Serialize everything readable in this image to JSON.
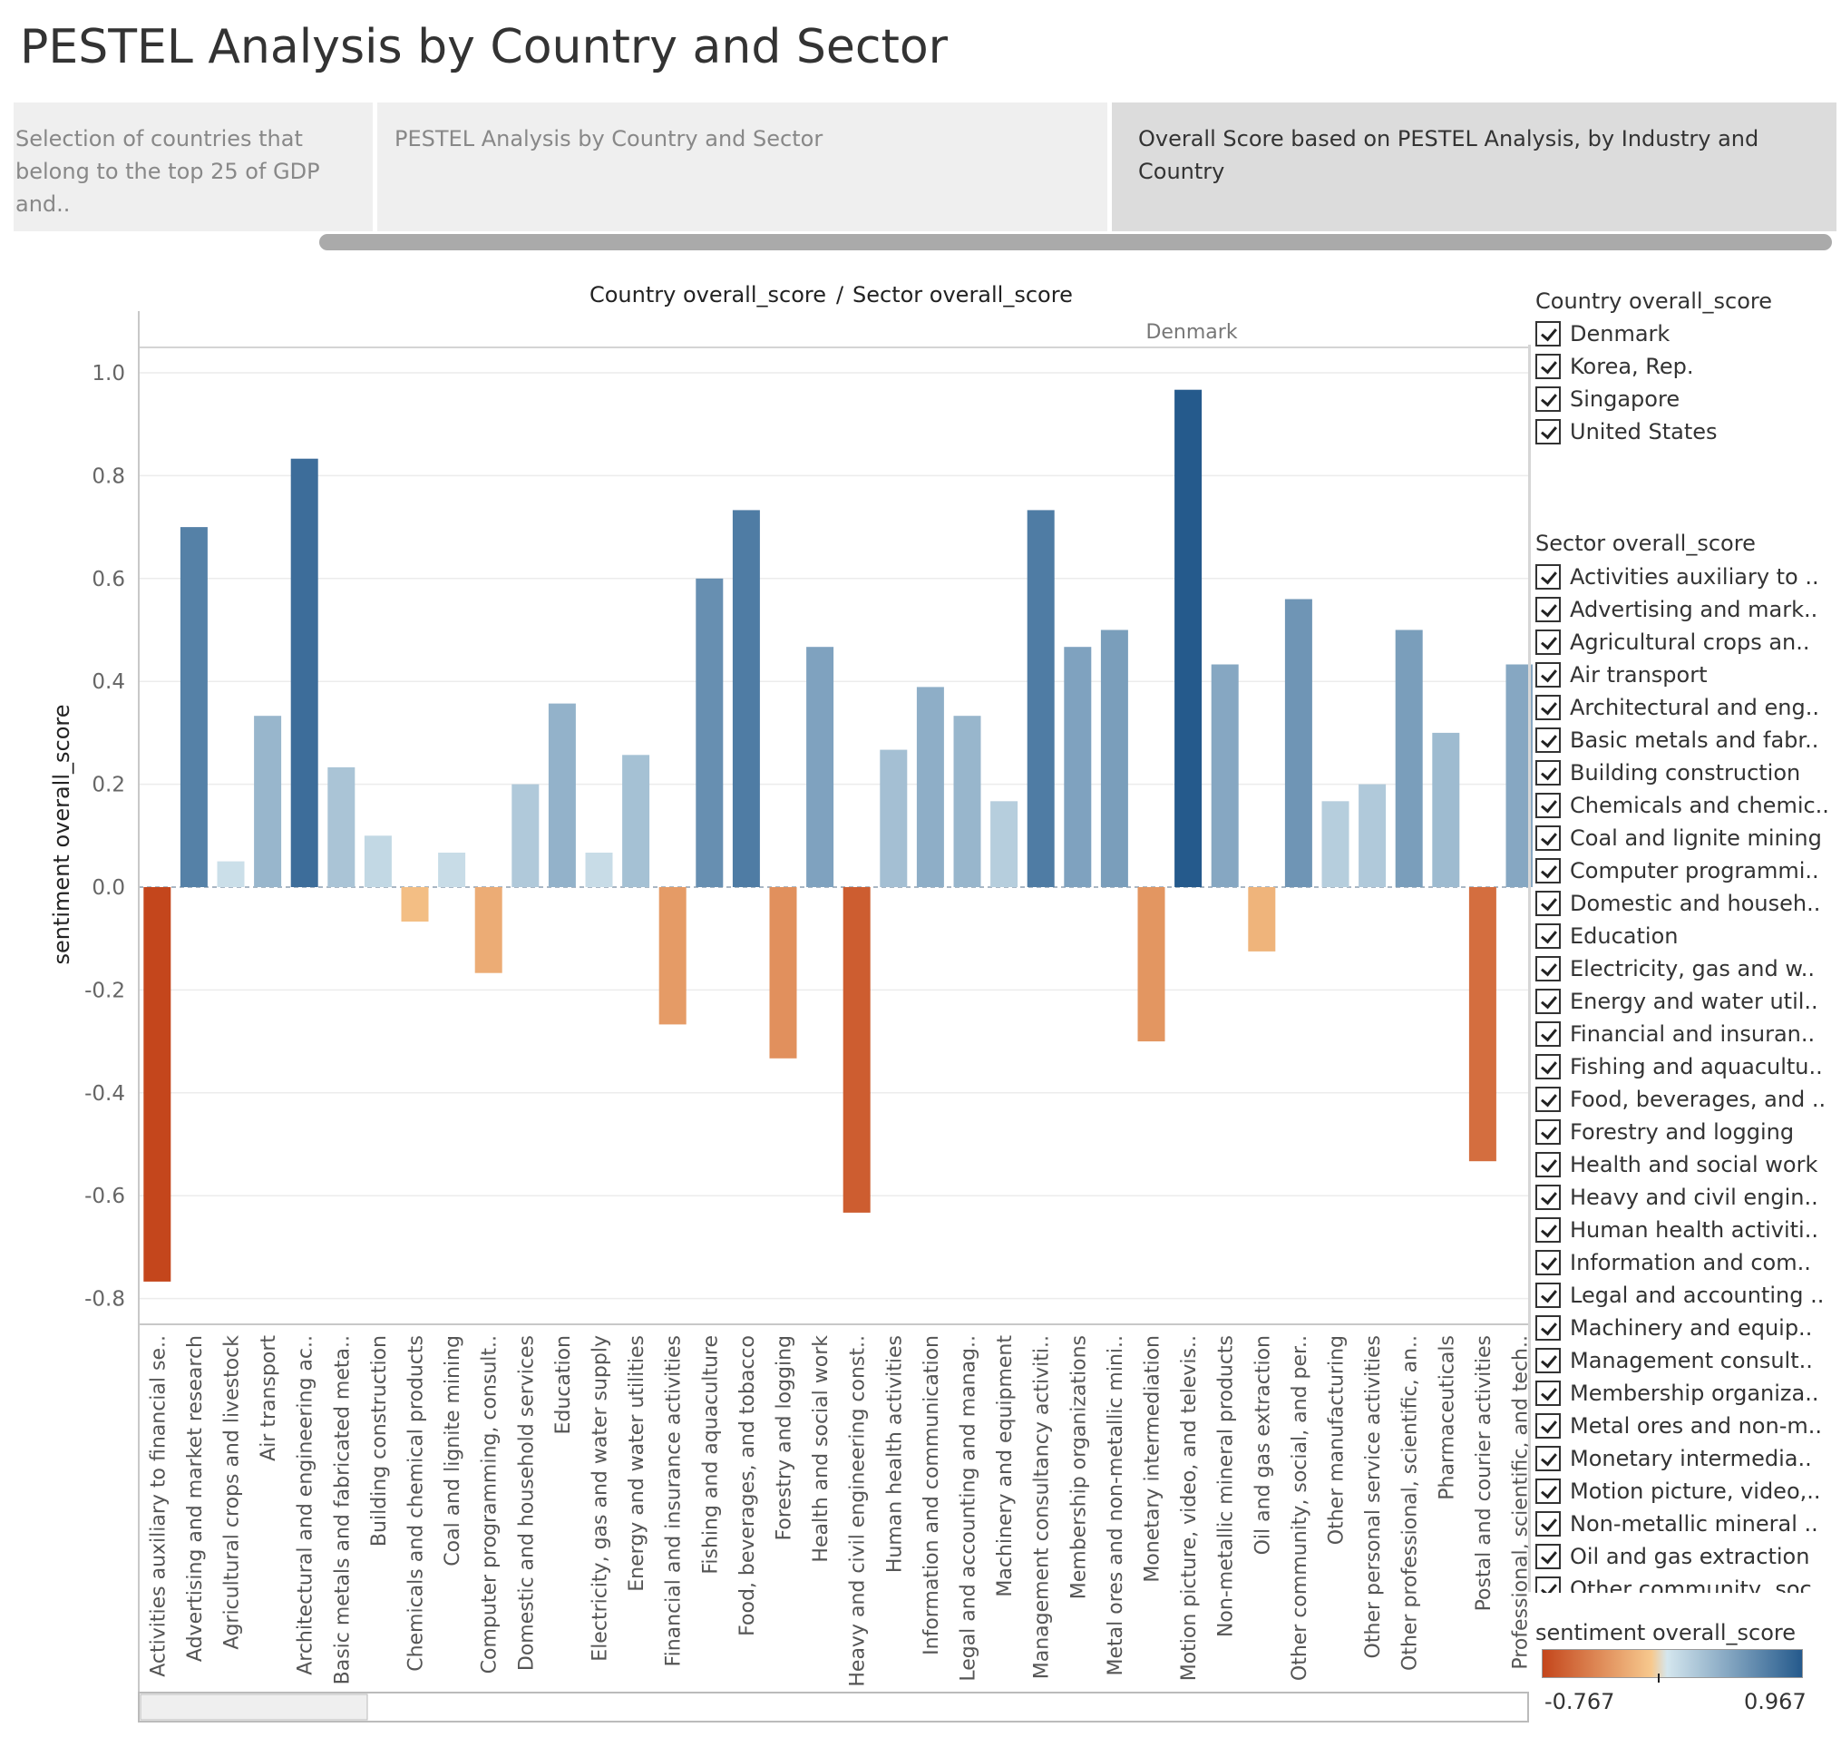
{
  "page": {
    "title": "PESTEL Analysis by Country and Sector"
  },
  "tabs": [
    {
      "label": "Selection of countries that belong to the top 25 of GDP and..",
      "lines": [
        "Selection of countries that",
        "belong to the top 25 of GDP and.."
      ],
      "active": false
    },
    {
      "label": "PESTEL Analysis by Country and Sector",
      "lines": [
        "PESTEL Analysis by Country and Sector"
      ],
      "active": false
    },
    {
      "label": "Overall Score based on PESTEL Analysis, by Industry and Country",
      "lines": [
        "Overall Score based on PESTEL Analysis, by Industry and Country"
      ],
      "active": true
    }
  ],
  "chart_data": {
    "type": "bar",
    "title": "Country overall_score / Sector overall_score",
    "header_parts": [
      "Country overall_score",
      "/",
      "Sector overall_score"
    ],
    "panel": "Denmark",
    "ylabel": "sentiment overall_score",
    "xlabel": "",
    "ylim": [
      -0.85,
      1.1
    ],
    "yticks": [
      1.0,
      0.8,
      0.6,
      0.4,
      0.2,
      0.0,
      -0.2,
      -0.4,
      -0.6,
      -0.8
    ],
    "ytick_labels": [
      "1.0",
      "0.8",
      "0.6",
      "0.4",
      "0.2",
      "0.0",
      "-0.2",
      "-0.4",
      "-0.6",
      "-0.8"
    ],
    "grid": true,
    "categories": [
      "Activities auxiliary to financial se..",
      "Advertising and market research",
      "Agricultural crops and livestock",
      "Air transport",
      "Architectural and engineering ac..",
      "Basic metals and fabricated meta..",
      "Building construction",
      "Chemicals and chemical products",
      "Coal and lignite mining",
      "Computer programming, consult..",
      "Domestic and household services",
      "Education",
      "Electricity, gas and water supply",
      "Energy and water utilities",
      "Financial and insurance activities",
      "Fishing and aquaculture",
      "Food, beverages, and tobacco",
      "Forestry and logging",
      "Health and social work",
      "Heavy and civil engineering const..",
      "Human health activities",
      "Information and communication",
      "Legal and accounting and manag..",
      "Machinery and equipment",
      "Management consultancy activiti..",
      "Membership organizations",
      "Metal ores and non-metallic mini..",
      "Monetary intermediation",
      "Motion picture, video, and televis..",
      "Non-metallic mineral products",
      "Oil and gas extraction",
      "Other community, social, and per..",
      "Other manufacturing",
      "Other personal service activities",
      "Other professional, scientific, an..",
      "Pharmaceuticals",
      "Postal and courier activities",
      "Professional, scientific, and tech.."
    ],
    "series": [
      {
        "values": [
          -0.767,
          0.7,
          0.05,
          0.333,
          0.833,
          0.233,
          0.1,
          -0.067,
          0.067,
          -0.167,
          0.2,
          0.357,
          0.067,
          0.257,
          -0.267,
          0.6,
          0.733,
          -0.333,
          0.467,
          -0.633,
          0.267,
          0.389,
          0.333,
          0.167,
          0.733,
          0.467,
          0.5,
          -0.3,
          0.967,
          0.433,
          -0.125,
          0.56,
          0.167,
          0.2,
          0.5,
          0.3,
          -0.533,
          0.433
        ]
      }
    ],
    "color_scale": {
      "min": -0.767,
      "max": 0.967,
      "min_label": "-0.767",
      "max_label": "0.967",
      "low_color": "#c4461c",
      "mid_color": "#f7c98e",
      "center_color": "#d4e6ee",
      "high_color": "#255a8c"
    }
  },
  "country_legend": {
    "title": "Country overall_score",
    "items": [
      "Denmark",
      "Korea, Rep.",
      "Singapore",
      "United States"
    ]
  },
  "sector_legend": {
    "title": "Sector overall_score",
    "items": [
      "Activities auxiliary to ..",
      "Advertising and mark..",
      "Agricultural crops an..",
      "Air transport",
      "Architectural and eng..",
      "Basic metals and fabr..",
      "Building construction",
      "Chemicals and chemic..",
      "Coal and lignite mining",
      "Computer programmi..",
      "Domestic and househ..",
      "Education",
      "Electricity, gas and w..",
      "Energy and water util..",
      "Financial and insuran..",
      "Fishing and aquacultu..",
      "Food, beverages, and ..",
      "Forestry and logging",
      "Health and social work",
      "Heavy and civil engin..",
      "Human health activiti..",
      "Information and com..",
      "Legal and accounting ..",
      "Machinery and equip..",
      "Management consult..",
      "Membership organiza..",
      "Metal ores and non-m..",
      "Monetary intermedia..",
      "Motion picture, video,..",
      "Non-metallic mineral ..",
      "Oil and gas extraction",
      "Other community, soc.."
    ]
  },
  "color_legend": {
    "title": "sentiment overall_score"
  }
}
